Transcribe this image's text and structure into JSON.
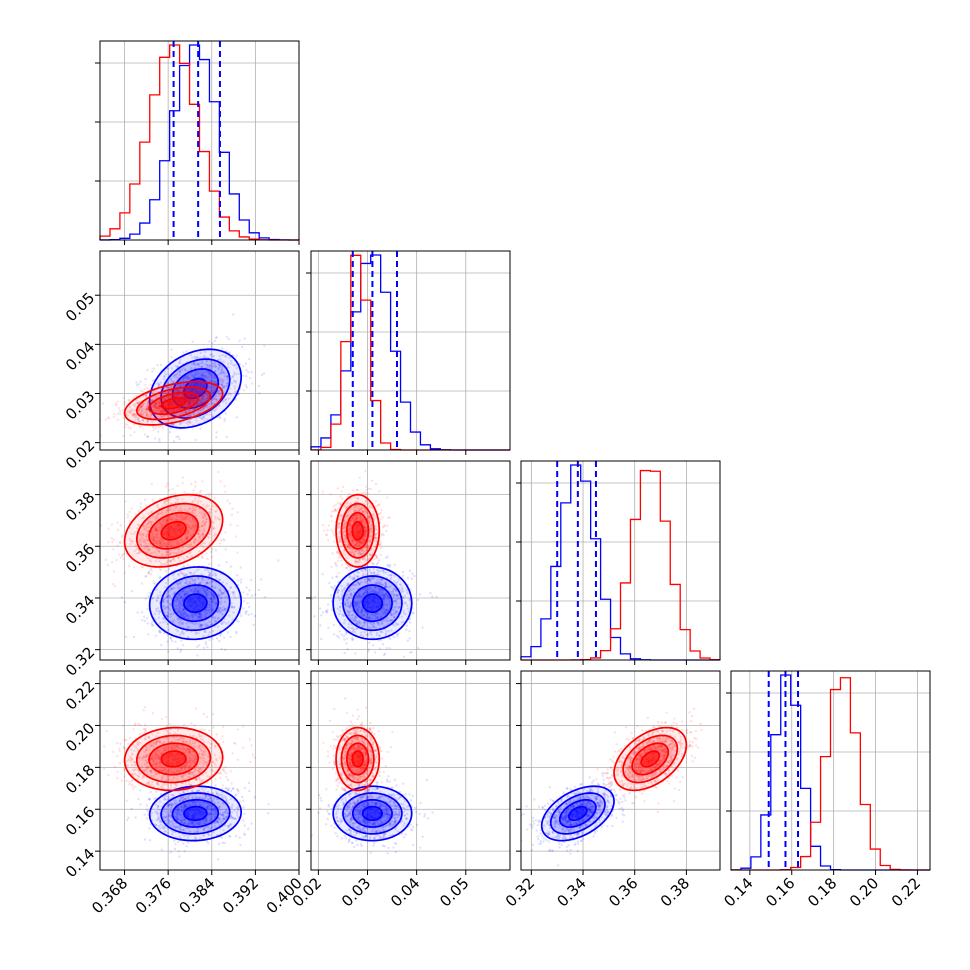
{
  "colors": {
    "series_a": "#0000ff",
    "series_b": "#ff0000",
    "grid": "#b0b0b0",
    "axis": "#000000"
  },
  "chart_data": {
    "type": "corner",
    "n_params": 4,
    "grid": true,
    "quantile_lines_style": "dashed",
    "series": [
      {
        "color": "#0000ff",
        "means": [
          0.381,
          0.031,
          0.338,
          0.158
        ],
        "sds": [
          0.0042,
          0.004,
          0.007,
          0.0065
        ],
        "correlations": [
          [
            0,
            1,
            0.3
          ],
          [
            0,
            2,
            0.05
          ],
          [
            0,
            3,
            0.05
          ],
          [
            1,
            2,
            0.0
          ],
          [
            1,
            3,
            0.0
          ],
          [
            2,
            3,
            0.45
          ]
        ],
        "quantiles": [
          [
            0.377,
            0.3815,
            0.3855
          ],
          [
            0.027,
            0.031,
            0.036
          ],
          [
            0.33,
            0.338,
            0.345
          ],
          [
            0.149,
            0.157,
            0.163
          ]
        ]
      },
      {
        "color": "#ff0000",
        "means": [
          0.377,
          0.028,
          0.366,
          0.184
        ],
        "sds": [
          0.0045,
          0.0022,
          0.007,
          0.0075
        ],
        "correlations": [
          [
            0,
            1,
            0.45
          ],
          [
            0,
            2,
            0.3
          ],
          [
            0,
            3,
            0.05
          ],
          [
            1,
            2,
            0.0
          ],
          [
            1,
            3,
            0.0
          ],
          [
            2,
            3,
            0.45
          ]
        ],
        "quantiles": []
      }
    ],
    "axes": [
      {
        "range": [
          0.3635,
          0.4
        ],
        "ticks": [
          "0.368",
          "0.376",
          "0.384",
          "0.392",
          "0.400"
        ]
      },
      {
        "range": [
          0.0185,
          0.059
        ],
        "ticks": [
          "0.02",
          "0.03",
          "0.04",
          "0.05"
        ]
      },
      {
        "range": [
          0.316,
          0.393
        ],
        "ticks": [
          "0.32",
          "0.34",
          "0.36",
          "0.38"
        ]
      },
      {
        "range": [
          0.131,
          0.226
        ],
        "ticks": [
          "0.14",
          "0.16",
          "0.18",
          "0.20",
          "0.22"
        ]
      }
    ],
    "contour_levels_sigma": [
      0.5,
      1.0,
      1.5,
      2.0
    ]
  }
}
